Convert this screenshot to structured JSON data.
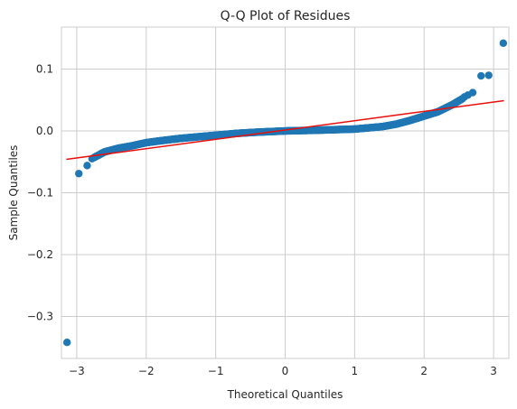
{
  "chart_data": {
    "type": "scatter",
    "title": "Q-Q Plot of Residues",
    "xlabel": "Theoretical Quantiles",
    "ylabel": "Sample Quantiles",
    "xlim": [
      -3.22,
      3.22
    ],
    "ylim": [
      -0.368,
      0.168
    ],
    "xticks": [
      -3,
      -2,
      -1,
      0,
      1,
      2,
      3
    ],
    "xtick_labels": [
      "−3",
      "−2",
      "−1",
      "0",
      "1",
      "2",
      "3"
    ],
    "yticks": [
      -0.3,
      -0.2,
      -0.1,
      0.0,
      0.1
    ],
    "ytick_labels": [
      "−0.3",
      "−0.2",
      "−0.1",
      "0.0",
      "0.1"
    ],
    "grid": true,
    "colors": {
      "points": "#1f77b4",
      "line": "#e8100d",
      "grid": "#cccccc",
      "axes": "#cccccc"
    },
    "reference_line": {
      "x": [
        -3.15,
        3.15
      ],
      "y": [
        -0.046,
        0.049
      ]
    },
    "quantile_curve": [
      [
        -2.75,
        -0.043
      ],
      [
        -2.6,
        -0.034
      ],
      [
        -2.4,
        -0.028
      ],
      [
        -2.2,
        -0.024
      ],
      [
        -2.0,
        -0.019
      ],
      [
        -1.8,
        -0.016
      ],
      [
        -1.5,
        -0.012
      ],
      [
        -1.2,
        -0.009
      ],
      [
        -1.0,
        -0.007
      ],
      [
        -0.7,
        -0.004
      ],
      [
        -0.4,
        -0.002
      ],
      [
        0.0,
        0.0
      ],
      [
        0.4,
        0.001
      ],
      [
        0.7,
        0.002
      ],
      [
        1.0,
        0.003
      ],
      [
        1.2,
        0.005
      ],
      [
        1.4,
        0.007
      ],
      [
        1.6,
        0.011
      ],
      [
        1.8,
        0.017
      ],
      [
        2.0,
        0.024
      ],
      [
        2.2,
        0.031
      ],
      [
        2.4,
        0.042
      ],
      [
        2.55,
        0.052
      ]
    ],
    "series": [
      {
        "values": [
          [
            -3.14,
            -0.342
          ],
          [
            -2.97,
            -0.069
          ],
          [
            -2.85,
            -0.056
          ],
          [
            -2.78,
            -0.045
          ],
          [
            -2.72,
            -0.041
          ],
          [
            -2.68,
            -0.039
          ],
          [
            -2.64,
            -0.036
          ],
          [
            -2.6,
            -0.034
          ],
          [
            -2.57,
            -0.033
          ],
          [
            2.58,
            0.055
          ],
          [
            2.63,
            0.058
          ],
          [
            2.7,
            0.062
          ],
          [
            2.82,
            0.089
          ],
          [
            2.93,
            0.09
          ],
          [
            3.14,
            0.142
          ]
        ]
      }
    ],
    "curve_point_count": 700
  }
}
